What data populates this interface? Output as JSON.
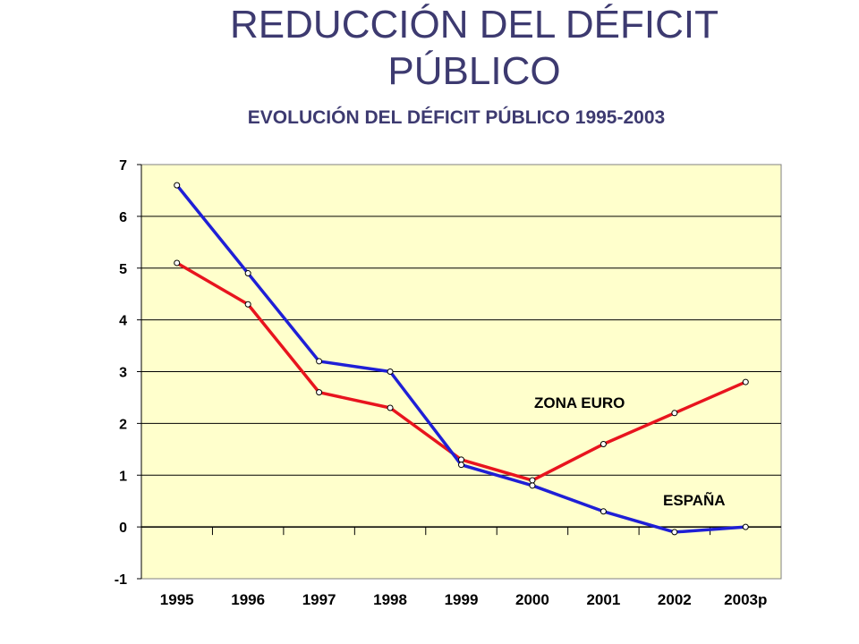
{
  "slide": {
    "title": "REDUCCIÓN DEL DÉFICIT PÚBLICO"
  },
  "chart_data": {
    "type": "line",
    "title": "EVOLUCIÓN DEL DÉFICIT PÚBLICO 1995-2003",
    "xlabel": "",
    "ylabel": "",
    "categories": [
      "1995",
      "1996",
      "1997",
      "1998",
      "1999",
      "2000",
      "2001",
      "2002",
      "2003p"
    ],
    "ylim": [
      -1,
      7
    ],
    "yticks": [
      "7",
      "6",
      "5",
      "4",
      "3",
      "2",
      "1",
      "0",
      "-1"
    ],
    "grid": true,
    "plot_background": "#ffffcc",
    "series": [
      {
        "name": "ZONA EURO",
        "color": "#e8141e",
        "values": [
          5.1,
          4.3,
          2.6,
          2.3,
          1.3,
          0.9,
          1.6,
          2.2,
          2.8
        ]
      },
      {
        "name": "ESPAÑA",
        "color": "#1f1fd6",
        "values": [
          6.6,
          4.9,
          3.2,
          3.0,
          1.2,
          0.8,
          0.3,
          -0.1,
          0.0
        ]
      }
    ]
  }
}
